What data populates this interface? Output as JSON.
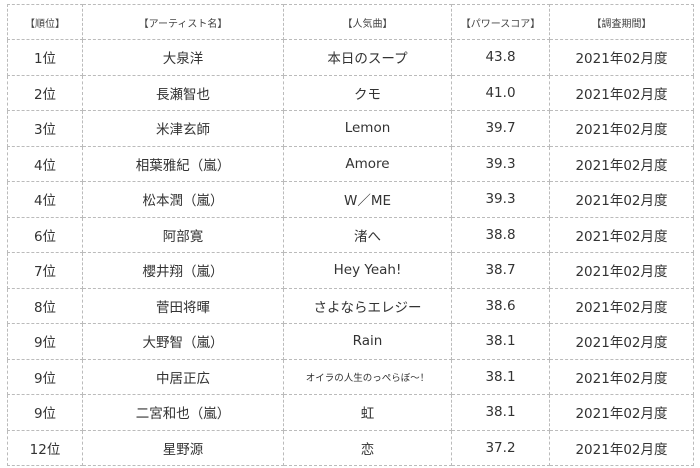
{
  "headers": [
    "【順位】",
    "【アーティスト名】",
    "【人気曲】",
    "【パワースコア】",
    "【調査期間】"
  ],
  "rows": [
    {
      "rank": "1位",
      "artist": "大泉洋",
      "song": "本日のスープ",
      "score": "43.8",
      "period": "2021年02月度"
    },
    {
      "rank": "2位",
      "artist": "長瀬智也",
      "song": "クモ",
      "score": "41.0",
      "period": "2021年02月度"
    },
    {
      "rank": "3位",
      "artist": "米津玄師",
      "song": "Lemon",
      "score": "39.7",
      "period": "2021年02月度"
    },
    {
      "rank": "4位",
      "artist": "相葉雅紀（嵐）",
      "song": "Amore",
      "score": "39.3",
      "period": "2021年02月度"
    },
    {
      "rank": "4位",
      "artist": "松本潤（嵐）",
      "song": "W／ME",
      "score": "39.3",
      "period": "2021年02月度"
    },
    {
      "rank": "6位",
      "artist": "阿部寛",
      "song": "渚へ",
      "score": "38.8",
      "period": "2021年02月度"
    },
    {
      "rank": "7位",
      "artist": "櫻井翔（嵐）",
      "song": "Hey Yeah!",
      "score": "38.7",
      "period": "2021年02月度"
    },
    {
      "rank": "8位",
      "artist": "菅田将暉",
      "song": "さよならエレジー",
      "score": "38.6",
      "period": "2021年02月度"
    },
    {
      "rank": "9位",
      "artist": "大野智（嵐）",
      "song": "Rain",
      "score": "38.1",
      "period": "2021年02月度"
    },
    {
      "rank": "9位",
      "artist": "中居正広",
      "song": "オイラの人生のっぺらぼ〜！",
      "score": "38.1",
      "period": "2021年02月度"
    },
    {
      "rank": "9位",
      "artist": "二宮和也（嵐）",
      "song": "虹",
      "score": "38.1",
      "period": "2021年02月度"
    },
    {
      "rank": "12位",
      "artist": "星野源",
      "song": "恋",
      "score": "37.2",
      "period": "2021年02月度"
    }
  ]
}
